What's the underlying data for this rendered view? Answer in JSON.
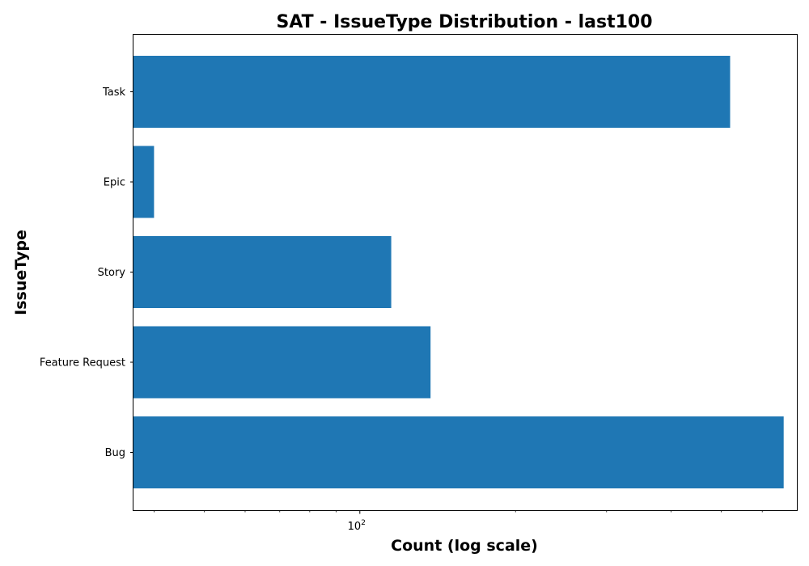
{
  "chart_data": {
    "type": "bar",
    "orientation": "horizontal",
    "title": "SAT - IssueType Distribution - last100",
    "xlabel": "Count (log scale)",
    "ylabel": "IssueType",
    "x_scale": "log",
    "xlim": [
      36.5,
      700
    ],
    "categories": [
      "Task",
      "Epic",
      "Story",
      "Feature Request",
      "Bug"
    ],
    "values": [
      520,
      40,
      115,
      137,
      660
    ],
    "x_major_ticks": [
      100
    ],
    "x_major_tick_labels": [
      {
        "base": "10",
        "exponent": "2"
      }
    ],
    "x_minor_ticks": [
      40,
      50,
      60,
      70,
      80,
      90,
      200,
      300,
      400,
      500,
      600
    ],
    "bar_color": "#1f77b4",
    "grid": false,
    "legend": "none"
  }
}
